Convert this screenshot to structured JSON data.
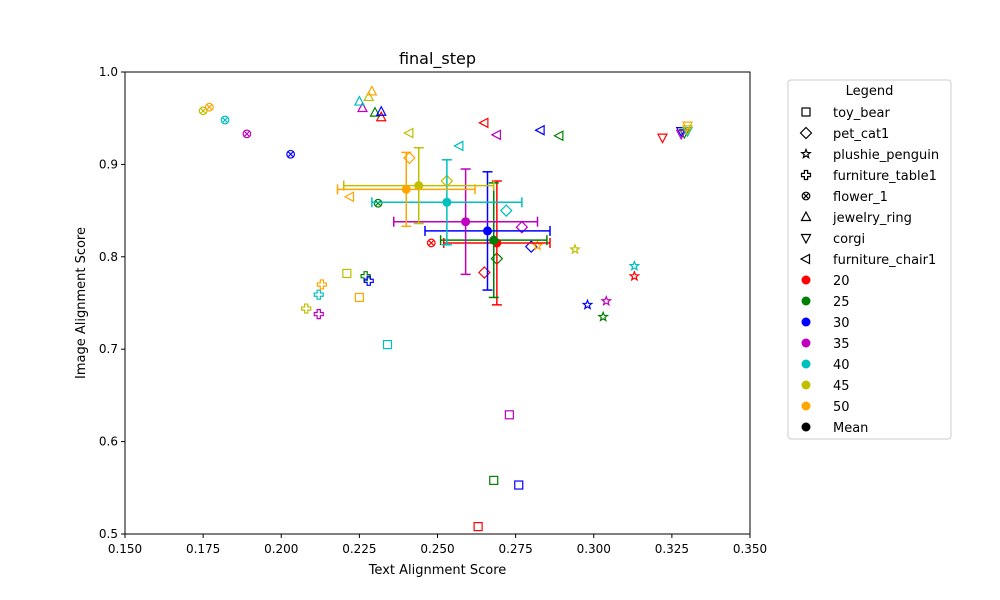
{
  "chart_data": {
    "type": "scatter",
    "title": "final_step",
    "xlabel": "Text Alignment Score",
    "ylabel": "Image Alignment Score",
    "xlim": [
      0.15,
      0.35
    ],
    "ylim": [
      0.5,
      1.0
    ],
    "x_ticks": [
      "0.150",
      "0.175",
      "0.200",
      "0.225",
      "0.250",
      "0.275",
      "0.300",
      "0.325",
      "0.350"
    ],
    "y_ticks": [
      "0.5",
      "0.6",
      "0.7",
      "0.8",
      "0.9",
      "1.0"
    ],
    "legend_title": "Legend",
    "legend_position": "outside right",
    "grid": false,
    "shapes": [
      {
        "name": "toy_bear",
        "marker": "square"
      },
      {
        "name": "pet_cat1",
        "marker": "diamond"
      },
      {
        "name": "plushie_penguin",
        "marker": "star"
      },
      {
        "name": "furniture_table1",
        "marker": "plus"
      },
      {
        "name": "flower_1",
        "marker": "x-circle"
      },
      {
        "name": "jewelry_ring",
        "marker": "triangle-up"
      },
      {
        "name": "corgi",
        "marker": "triangle-down"
      },
      {
        "name": "furniture_chair1",
        "marker": "triangle-left"
      }
    ],
    "steps": [
      {
        "name": "20",
        "color": "#ff0000"
      },
      {
        "name": "25",
        "color": "#008000"
      },
      {
        "name": "30",
        "color": "#0000ff"
      },
      {
        "name": "35",
        "color": "#bf00bf"
      },
      {
        "name": "40",
        "color": "#00bfbf"
      },
      {
        "name": "45",
        "color": "#bfbf00"
      },
      {
        "name": "50",
        "color": "#ffa500"
      }
    ],
    "mean_label": "Mean",
    "mean_color": "#000000",
    "points": [
      {
        "shape": "toy_bear",
        "step": "20",
        "x": 0.263,
        "y": 0.508
      },
      {
        "shape": "toy_bear",
        "step": "25",
        "x": 0.268,
        "y": 0.558
      },
      {
        "shape": "toy_bear",
        "step": "30",
        "x": 0.276,
        "y": 0.553
      },
      {
        "shape": "toy_bear",
        "step": "35",
        "x": 0.273,
        "y": 0.629
      },
      {
        "shape": "toy_bear",
        "step": "40",
        "x": 0.234,
        "y": 0.705
      },
      {
        "shape": "toy_bear",
        "step": "45",
        "x": 0.221,
        "y": 0.782
      },
      {
        "shape": "toy_bear",
        "step": "50",
        "x": 0.225,
        "y": 0.756
      },
      {
        "shape": "pet_cat1",
        "step": "20",
        "x": 0.265,
        "y": 0.783
      },
      {
        "shape": "pet_cat1",
        "step": "25",
        "x": 0.269,
        "y": 0.798
      },
      {
        "shape": "pet_cat1",
        "step": "30",
        "x": 0.28,
        "y": 0.811
      },
      {
        "shape": "pet_cat1",
        "step": "35",
        "x": 0.277,
        "y": 0.832
      },
      {
        "shape": "pet_cat1",
        "step": "40",
        "x": 0.272,
        "y": 0.85
      },
      {
        "shape": "pet_cat1",
        "step": "45",
        "x": 0.253,
        "y": 0.882
      },
      {
        "shape": "pet_cat1",
        "step": "50",
        "x": 0.241,
        "y": 0.907
      },
      {
        "shape": "plushie_penguin",
        "step": "20",
        "x": 0.313,
        "y": 0.779
      },
      {
        "shape": "plushie_penguin",
        "step": "25",
        "x": 0.303,
        "y": 0.735
      },
      {
        "shape": "plushie_penguin",
        "step": "30",
        "x": 0.298,
        "y": 0.748
      },
      {
        "shape": "plushie_penguin",
        "step": "35",
        "x": 0.304,
        "y": 0.752
      },
      {
        "shape": "plushie_penguin",
        "step": "40",
        "x": 0.313,
        "y": 0.79
      },
      {
        "shape": "plushie_penguin",
        "step": "45",
        "x": 0.294,
        "y": 0.808
      },
      {
        "shape": "plushie_penguin",
        "step": "50",
        "x": 0.282,
        "y": 0.812
      },
      {
        "shape": "furniture_table1",
        "step": "25",
        "x": 0.227,
        "y": 0.779
      },
      {
        "shape": "furniture_table1",
        "step": "30",
        "x": 0.228,
        "y": 0.774
      },
      {
        "shape": "furniture_table1",
        "step": "35",
        "x": 0.212,
        "y": 0.738
      },
      {
        "shape": "furniture_table1",
        "step": "40",
        "x": 0.212,
        "y": 0.759
      },
      {
        "shape": "furniture_table1",
        "step": "45",
        "x": 0.208,
        "y": 0.744
      },
      {
        "shape": "furniture_table1",
        "step": "50",
        "x": 0.213,
        "y": 0.77
      },
      {
        "shape": "flower_1",
        "step": "20",
        "x": 0.248,
        "y": 0.815
      },
      {
        "shape": "flower_1",
        "step": "25",
        "x": 0.231,
        "y": 0.858
      },
      {
        "shape": "flower_1",
        "step": "30",
        "x": 0.203,
        "y": 0.911
      },
      {
        "shape": "flower_1",
        "step": "35",
        "x": 0.189,
        "y": 0.933
      },
      {
        "shape": "flower_1",
        "step": "40",
        "x": 0.182,
        "y": 0.948
      },
      {
        "shape": "flower_1",
        "step": "45",
        "x": 0.175,
        "y": 0.958
      },
      {
        "shape": "flower_1",
        "step": "50",
        "x": 0.177,
        "y": 0.962
      },
      {
        "shape": "jewelry_ring",
        "step": "20",
        "x": 0.232,
        "y": 0.951
      },
      {
        "shape": "jewelry_ring",
        "step": "25",
        "x": 0.23,
        "y": 0.956
      },
      {
        "shape": "jewelry_ring",
        "step": "30",
        "x": 0.232,
        "y": 0.957
      },
      {
        "shape": "jewelry_ring",
        "step": "35",
        "x": 0.226,
        "y": 0.961
      },
      {
        "shape": "jewelry_ring",
        "step": "40",
        "x": 0.225,
        "y": 0.968
      },
      {
        "shape": "jewelry_ring",
        "step": "45",
        "x": 0.228,
        "y": 0.973
      },
      {
        "shape": "jewelry_ring",
        "step": "50",
        "x": 0.229,
        "y": 0.979
      },
      {
        "shape": "corgi",
        "step": "20",
        "x": 0.322,
        "y": 0.929
      },
      {
        "shape": "corgi",
        "step": "25",
        "x": 0.329,
        "y": 0.934
      },
      {
        "shape": "corgi",
        "step": "30",
        "x": 0.328,
        "y": 0.936
      },
      {
        "shape": "corgi",
        "step": "35",
        "x": 0.328,
        "y": 0.933
      },
      {
        "shape": "corgi",
        "step": "40",
        "x": 0.33,
        "y": 0.936
      },
      {
        "shape": "corgi",
        "step": "45",
        "x": 0.33,
        "y": 0.938
      },
      {
        "shape": "corgi",
        "step": "50",
        "x": 0.33,
        "y": 0.942
      },
      {
        "shape": "furniture_chair1",
        "step": "20",
        "x": 0.265,
        "y": 0.945
      },
      {
        "shape": "furniture_chair1",
        "step": "25",
        "x": 0.289,
        "y": 0.931
      },
      {
        "shape": "furniture_chair1",
        "step": "30",
        "x": 0.283,
        "y": 0.937
      },
      {
        "shape": "furniture_chair1",
        "step": "35",
        "x": 0.269,
        "y": 0.932
      },
      {
        "shape": "furniture_chair1",
        "step": "40",
        "x": 0.257,
        "y": 0.92
      },
      {
        "shape": "furniture_chair1",
        "step": "45",
        "x": 0.241,
        "y": 0.934
      },
      {
        "shape": "furniture_chair1",
        "step": "50",
        "x": 0.222,
        "y": 0.865
      }
    ],
    "means": [
      {
        "step": "20",
        "x": 0.269,
        "y": 0.815,
        "xerr": 0.017,
        "yerr": 0.067
      },
      {
        "step": "25",
        "x": 0.268,
        "y": 0.818,
        "xerr": 0.017,
        "yerr": 0.062
      },
      {
        "step": "30",
        "x": 0.266,
        "y": 0.828,
        "xerr": 0.02,
        "yerr": 0.064
      },
      {
        "step": "35",
        "x": 0.259,
        "y": 0.838,
        "xerr": 0.023,
        "yerr": 0.057
      },
      {
        "step": "40",
        "x": 0.253,
        "y": 0.859,
        "xerr": 0.024,
        "yerr": 0.046
      },
      {
        "step": "45",
        "x": 0.244,
        "y": 0.877,
        "xerr": 0.024,
        "yerr": 0.041
      },
      {
        "step": "50",
        "x": 0.24,
        "y": 0.873,
        "xerr": 0.022,
        "yerr": 0.04
      }
    ]
  }
}
